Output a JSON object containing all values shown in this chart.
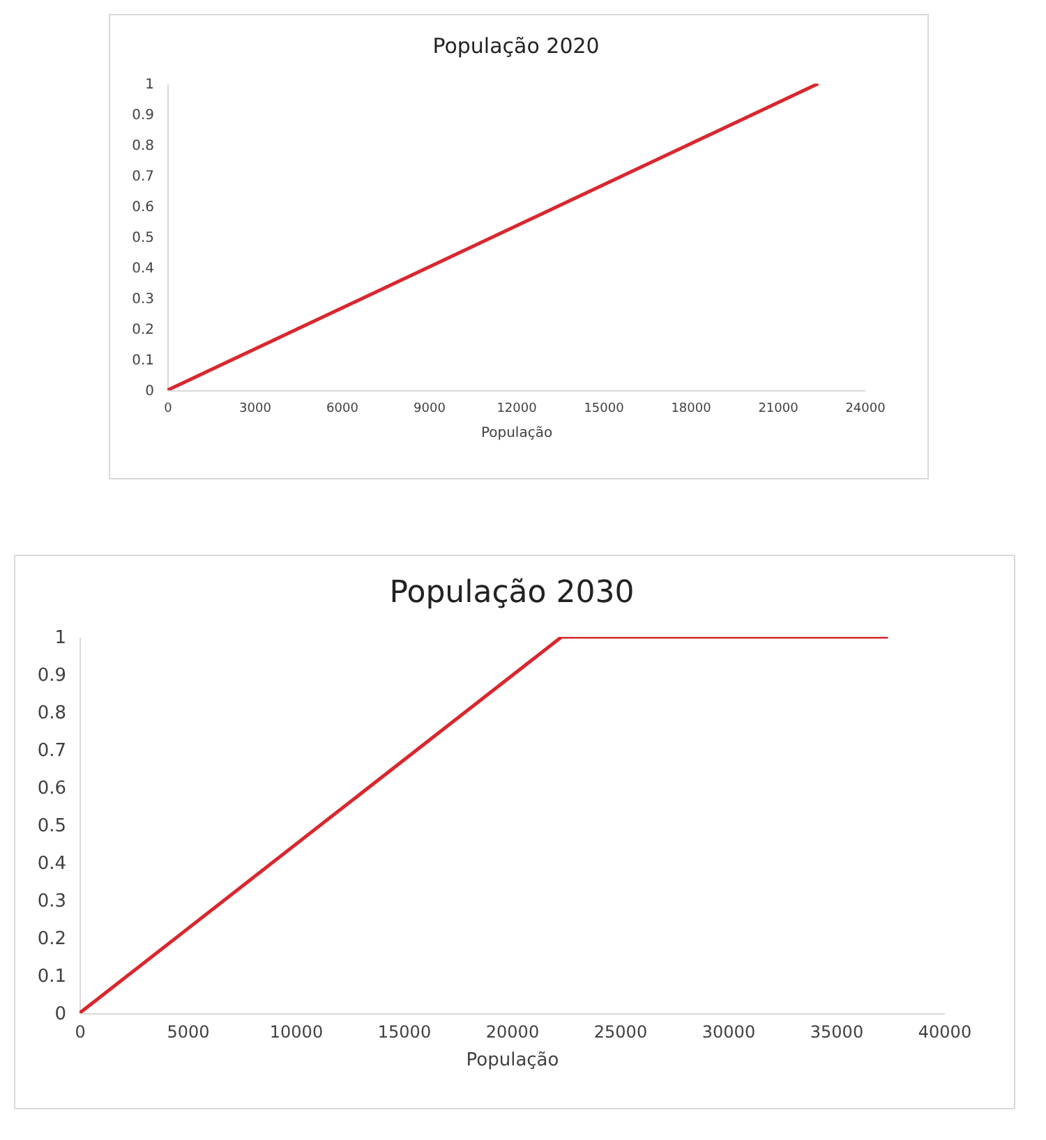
{
  "chart_data": [
    {
      "type": "line",
      "title": "População 2020",
      "xlabel": "População",
      "x": [
        0,
        22400
      ],
      "series": [
        {
          "color": "#d9272e",
          "values": [
            0,
            1
          ]
        }
      ],
      "xlim": [
        0,
        24000
      ],
      "xticks": [
        0,
        3000,
        6000,
        9000,
        12000,
        15000,
        18000,
        21000,
        24000
      ],
      "ylim": [
        0,
        1
      ],
      "yticks": [
        0,
        0.1,
        0.2,
        0.3,
        0.4,
        0.5,
        0.6,
        0.7,
        0.8,
        0.9,
        1
      ],
      "grid": false
    },
    {
      "type": "line",
      "title": "População 2030",
      "xlabel": "População",
      "x": [
        0,
        22300,
        37400
      ],
      "series": [
        {
          "color": "#d9272e",
          "values": [
            0,
            1,
            1
          ]
        }
      ],
      "xlim": [
        0,
        40000
      ],
      "xticks": [
        0,
        5000,
        10000,
        15000,
        20000,
        25000,
        30000,
        35000,
        40000
      ],
      "ylim": [
        0,
        1
      ],
      "yticks": [
        0,
        0.1,
        0.2,
        0.3,
        0.4,
        0.5,
        0.6,
        0.7,
        0.8,
        0.9,
        1
      ],
      "grid": false
    }
  ]
}
